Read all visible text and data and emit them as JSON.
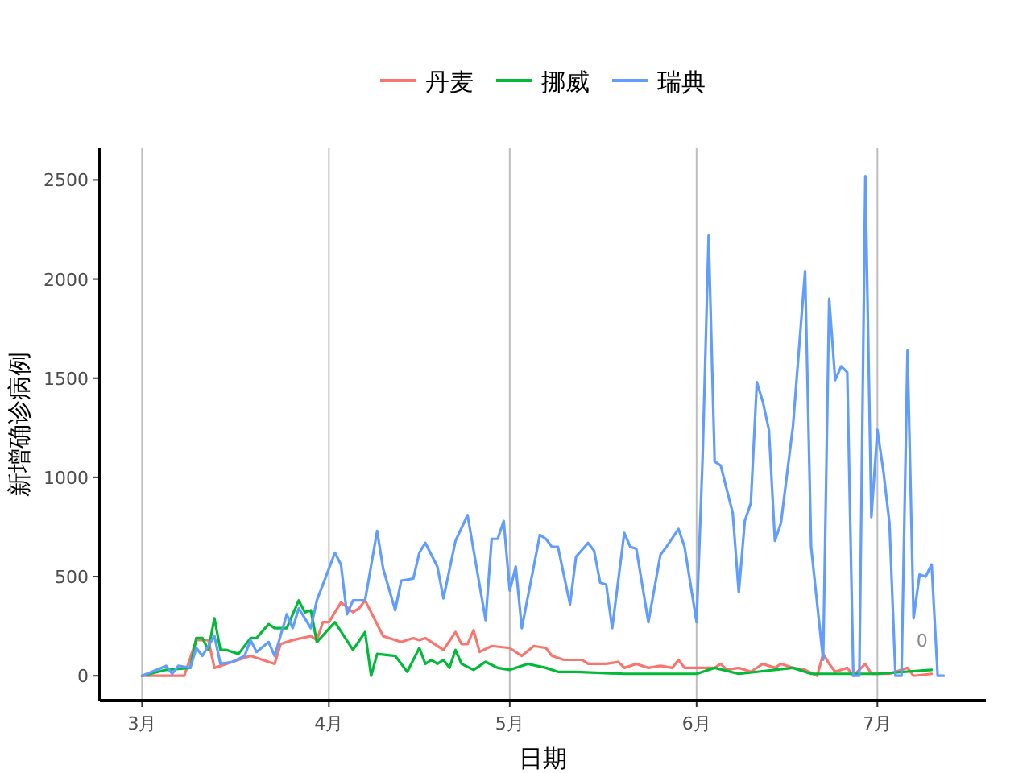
{
  "chart_data": {
    "type": "line",
    "xlabel": "日期",
    "ylabel": "新增确诊病例",
    "legend": "top",
    "grid": "x",
    "line_style": "solid",
    "xlim": [
      "--02-22",
      "--07-19"
    ],
    "xticks": [
      {
        "value": "--03-01",
        "label": "3月"
      },
      {
        "value": "--04-01",
        "label": "4月"
      },
      {
        "value": "--05-01",
        "label": "5月"
      },
      {
        "value": "--06-01",
        "label": "6月"
      },
      {
        "value": "--07-01",
        "label": "7月"
      }
    ],
    "ylim": [
      -125,
      2660
    ],
    "yticks": [
      0,
      500,
      1000,
      1500,
      2000,
      2500
    ],
    "annotations": [
      {
        "text": "0",
        "x": "--07-10",
        "y": 0
      }
    ],
    "series": [
      {
        "name": "丹麦",
        "color": "#f8766d",
        "x": [
          "--03-01",
          "--03-08",
          "--03-10",
          "--03-12",
          "--03-13",
          "--03-15",
          "--03-19",
          "--03-22",
          "--03-23",
          "--03-24",
          "--03-26",
          "--03-29",
          "--03-30",
          "--03-31",
          "--04-01",
          "--04-02",
          "--04-03",
          "--04-05",
          "--04-06",
          "--04-07",
          "--04-08",
          "--04-10",
          "--04-11",
          "--04-13",
          "--04-15",
          "--04-16",
          "--04-17",
          "--04-20",
          "--04-22",
          "--04-23",
          "--04-24",
          "--04-25",
          "--04-26",
          "--04-28",
          "--05-01",
          "--05-03",
          "--05-05",
          "--05-07",
          "--05-08",
          "--05-10",
          "--05-13",
          "--05-14",
          "--05-17",
          "--05-19",
          "--05-20",
          "--05-22",
          "--05-24",
          "--05-26",
          "--05-28",
          "--05-29",
          "--05-30",
          "--06-04",
          "--06-05",
          "--06-06",
          "--06-08",
          "--06-10",
          "--06-12",
          "--06-14",
          "--06-15",
          "--06-17",
          "--06-19",
          "--06-21",
          "--06-22",
          "--06-23",
          "--06-24",
          "--06-26",
          "--06-27",
          "--06-29",
          "--06-30",
          "--07-03",
          "--07-06",
          "--07-07",
          "--07-10"
        ],
        "values": [
          0,
          0,
          180,
          180,
          40,
          60,
          100,
          70,
          60,
          160,
          180,
          200,
          180,
          270,
          270,
          320,
          370,
          320,
          340,
          380,
          320,
          200,
          190,
          170,
          190,
          180,
          190,
          130,
          220,
          160,
          160,
          230,
          120,
          150,
          140,
          100,
          150,
          140,
          100,
          80,
          80,
          60,
          60,
          70,
          40,
          60,
          40,
          50,
          40,
          80,
          40,
          40,
          60,
          30,
          40,
          20,
          60,
          40,
          60,
          40,
          30,
          0,
          110,
          60,
          20,
          40,
          0,
          60,
          10,
          10,
          40,
          0,
          10
        ]
      },
      {
        "name": "挪威",
        "color": "#00ba38",
        "x": [
          "--03-01",
          "--03-05",
          "--03-09",
          "--03-10",
          "--03-11",
          "--03-12",
          "--03-13",
          "--03-14",
          "--03-15",
          "--03-17",
          "--03-19",
          "--03-20",
          "--03-22",
          "--03-23",
          "--03-25",
          "--03-27",
          "--03-28",
          "--03-29",
          "--03-30",
          "--04-02",
          "--04-05",
          "--04-07",
          "--04-08",
          "--04-09",
          "--04-12",
          "--04-14",
          "--04-16",
          "--04-17",
          "--04-18",
          "--04-19",
          "--04-20",
          "--04-21",
          "--04-22",
          "--04-23",
          "--04-25",
          "--04-27",
          "--04-29",
          "--05-01",
          "--05-04",
          "--05-07",
          "--05-09",
          "--05-12",
          "--05-20",
          "--06-01",
          "--06-04",
          "--06-08",
          "--06-17",
          "--06-20",
          "--06-26",
          "--07-01",
          "--07-10"
        ],
        "values": [
          0,
          30,
          40,
          190,
          190,
          130,
          290,
          130,
          130,
          110,
          190,
          190,
          260,
          240,
          240,
          380,
          320,
          330,
          170,
          270,
          130,
          220,
          0,
          110,
          100,
          20,
          140,
          60,
          80,
          60,
          80,
          40,
          130,
          60,
          30,
          70,
          40,
          30,
          60,
          40,
          20,
          20,
          10,
          10,
          40,
          10,
          40,
          10,
          10,
          10,
          30
        ]
      },
      {
        "name": "瑞典",
        "color": "#619cff",
        "x": [
          "--03-01",
          "--03-05",
          "--03-06",
          "--03-07",
          "--03-09",
          "--03-10",
          "--03-11",
          "--03-13",
          "--03-14",
          "--03-16",
          "--03-18",
          "--03-19",
          "--03-20",
          "--03-22",
          "--03-23",
          "--03-25",
          "--03-26",
          "--03-27",
          "--03-29",
          "--03-30",
          "--04-02",
          "--04-03",
          "--04-04",
          "--04-05",
          "--04-07",
          "--04-09",
          "--04-10",
          "--04-12",
          "--04-13",
          "--04-15",
          "--04-16",
          "--04-17",
          "--04-19",
          "--04-20",
          "--04-22",
          "--04-24",
          "--04-27",
          "--04-28",
          "--04-29",
          "--04-30",
          "--05-01",
          "--05-02",
          "--05-03",
          "--05-06",
          "--05-07",
          "--05-08",
          "--05-09",
          "--05-11",
          "--05-12",
          "--05-14",
          "--05-15",
          "--05-16",
          "--05-17",
          "--05-18",
          "--05-20",
          "--05-21",
          "--05-22",
          "--05-24",
          "--05-26",
          "--05-27",
          "--05-29",
          "--05-30",
          "--06-01",
          "--06-02",
          "--06-03",
          "--06-04",
          "--06-05",
          "--06-07",
          "--06-08",
          "--06-09",
          "--06-10",
          "--06-11",
          "--06-12",
          "--06-13",
          "--06-14",
          "--06-15",
          "--06-17",
          "--06-19",
          "--06-20",
          "--06-22",
          "--06-23",
          "--06-24",
          "--06-25",
          "--06-26",
          "--06-27",
          "--06-28",
          "--06-29",
          "--06-30",
          "--07-01",
          "--07-02",
          "--07-03",
          "--07-04",
          "--07-05",
          "--07-06",
          "--07-07",
          "--07-08",
          "--07-09",
          "--07-10",
          "--07-11",
          "--07-12"
        ],
        "values": [
          0,
          50,
          10,
          50,
          40,
          140,
          100,
          200,
          60,
          70,
          100,
          180,
          120,
          170,
          100,
          310,
          240,
          340,
          240,
          380,
          620,
          560,
          310,
          380,
          380,
          730,
          540,
          330,
          480,
          490,
          620,
          670,
          550,
          390,
          680,
          810,
          280,
          690,
          690,
          780,
          430,
          550,
          240,
          710,
          690,
          650,
          650,
          360,
          600,
          670,
          630,
          470,
          460,
          240,
          720,
          650,
          640,
          270,
          610,
          650,
          740,
          650,
          270,
          1100,
          2220,
          1080,
          1060,
          820,
          420,
          780,
          870,
          1480,
          1380,
          1240,
          680,
          770,
          1260,
          2040,
          650,
          80,
          1900,
          1490,
          1560,
          1530,
          0,
          0,
          2520,
          800,
          1240,
          1030,
          770,
          0,
          0,
          1640,
          290,
          510,
          500,
          560,
          0,
          0
        ]
      }
    ]
  }
}
